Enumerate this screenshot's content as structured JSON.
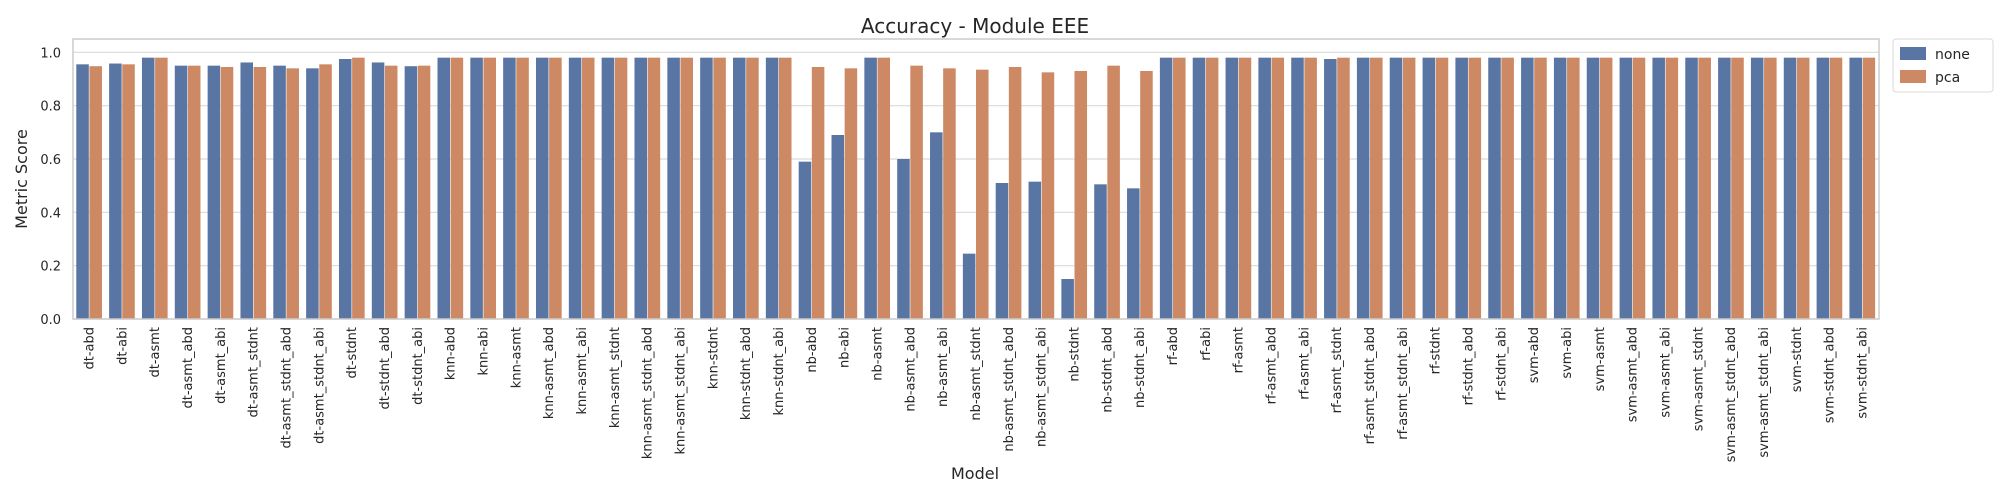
{
  "chart_data": {
    "type": "bar",
    "title": "Accuracy - Module EEE",
    "xlabel": "Model",
    "ylabel": "Metric Score",
    "ylim": [
      0,
      1.05
    ],
    "yticks": [
      "0.0",
      "0.2",
      "0.4",
      "0.6",
      "0.8",
      "1.0"
    ],
    "grid": true,
    "legend_position": "outside-top-right",
    "categories": [
      "dt-abd",
      "dt-abi",
      "dt-asmt",
      "dt-asmt_abd",
      "dt-asmt_abi",
      "dt-asmt_stdnt",
      "dt-asmt_stdnt_abd",
      "dt-asmt_stdnt_abi",
      "dt-stdnt",
      "dt-stdnt_abd",
      "dt-stdnt_abi",
      "knn-abd",
      "knn-abi",
      "knn-asmt",
      "knn-asmt_abd",
      "knn-asmt_abi",
      "knn-asmt_stdnt",
      "knn-asmt_stdnt_abd",
      "knn-asmt_stdnt_abi",
      "knn-stdnt",
      "knn-stdnt_abd",
      "knn-stdnt_abi",
      "nb-abd",
      "nb-abi",
      "nb-asmt",
      "nb-asmt_abd",
      "nb-asmt_abi",
      "nb-asmt_stdnt",
      "nb-asmt_stdnt_abd",
      "nb-asmt_stdnt_abi",
      "nb-stdnt",
      "nb-stdnt_abd",
      "nb-stdnt_abi",
      "rf-abd",
      "rf-abi",
      "rf-asmt",
      "rf-asmt_abd",
      "rf-asmt_abi",
      "rf-asmt_stdnt",
      "rf-asmt_stdnt_abd",
      "rf-asmt_stdnt_abi",
      "rf-stdnt",
      "rf-stdnt_abd",
      "rf-stdnt_abi",
      "svm-abd",
      "svm-abi",
      "svm-asmt",
      "svm-asmt_abd",
      "svm-asmt_abi",
      "svm-asmt_stdnt",
      "svm-asmt_stdnt_abd",
      "svm-asmt_stdnt_abi",
      "svm-stdnt",
      "svm-stdnt_abd",
      "svm-stdnt_abi"
    ],
    "series": [
      {
        "name": "none",
        "color": "#5975a4",
        "values": [
          0.955,
          0.958,
          0.98,
          0.95,
          0.95,
          0.962,
          0.95,
          0.94,
          0.975,
          0.962,
          0.948,
          0.98,
          0.98,
          0.98,
          0.98,
          0.98,
          0.98,
          0.98,
          0.98,
          0.98,
          0.98,
          0.98,
          0.59,
          0.69,
          0.98,
          0.6,
          0.7,
          0.245,
          0.51,
          0.515,
          0.15,
          0.505,
          0.49,
          0.98,
          0.98,
          0.98,
          0.98,
          0.98,
          0.975,
          0.98,
          0.98,
          0.98,
          0.98,
          0.98,
          0.98,
          0.98,
          0.98,
          0.98,
          0.98,
          0.98,
          0.98,
          0.98,
          0.98,
          0.98,
          0.98
        ]
      },
      {
        "name": "pca",
        "color": "#cc8963",
        "values": [
          0.948,
          0.955,
          0.98,
          0.95,
          0.945,
          0.945,
          0.94,
          0.955,
          0.98,
          0.95,
          0.95,
          0.98,
          0.98,
          0.98,
          0.98,
          0.98,
          0.98,
          0.98,
          0.98,
          0.98,
          0.98,
          0.98,
          0.945,
          0.94,
          0.98,
          0.95,
          0.94,
          0.935,
          0.945,
          0.925,
          0.93,
          0.95,
          0.93,
          0.98,
          0.98,
          0.98,
          0.98,
          0.98,
          0.98,
          0.98,
          0.98,
          0.98,
          0.98,
          0.98,
          0.98,
          0.98,
          0.98,
          0.98,
          0.98,
          0.98,
          0.98,
          0.98,
          0.98,
          0.98,
          0.98
        ]
      }
    ]
  }
}
